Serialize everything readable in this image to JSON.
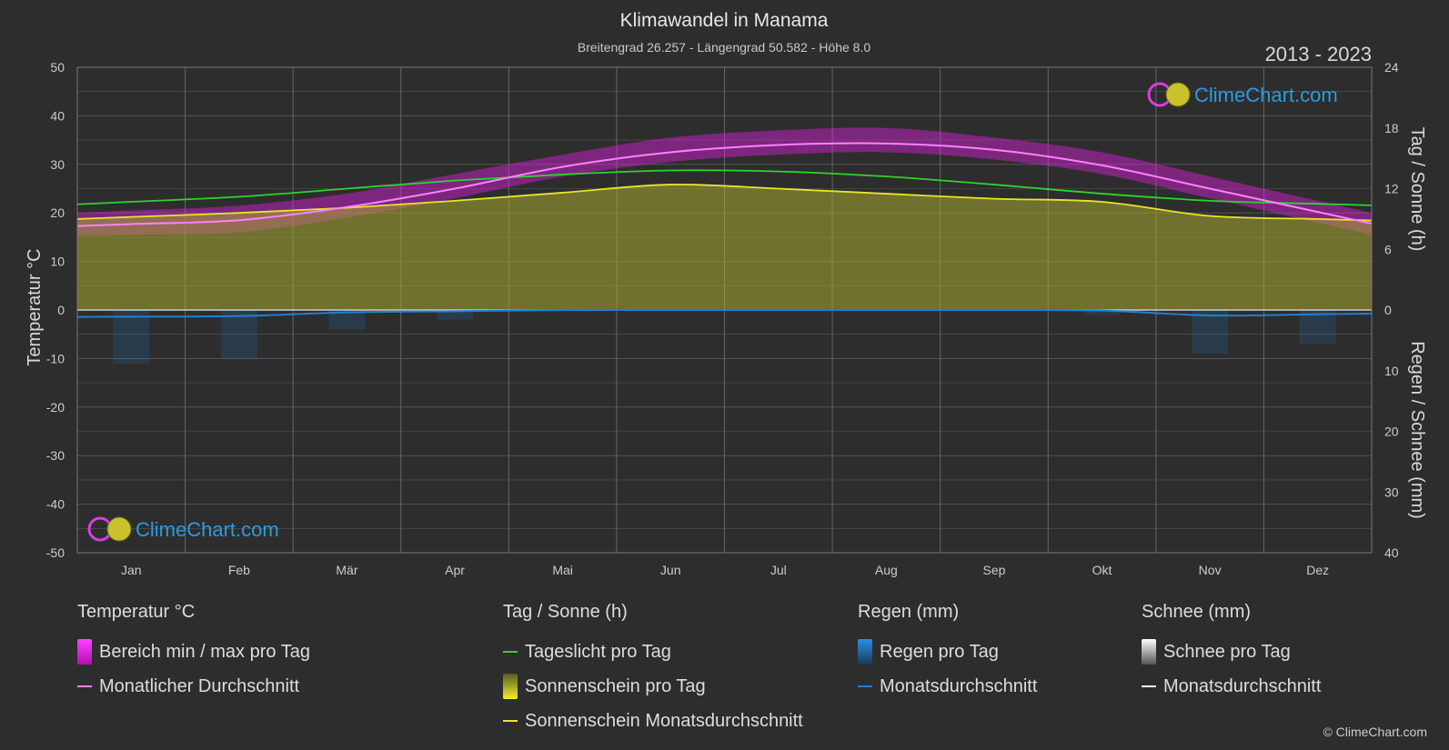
{
  "header": {
    "title": "Klimawandel in Manama",
    "subtitle": "Breitengrad 26.257 - Längengrad 50.582 - Höhe 8.0",
    "period": "2013 - 2023"
  },
  "logo_text": "ClimeChart.com",
  "copyright": "© ClimeChart.com",
  "colors": {
    "background": "#2d2d2d",
    "temp_band": "#e020e0",
    "temp_avg": "#ff80ff",
    "daylight": "#2ed32e",
    "sunshine_fill": "#a8a832",
    "sunshine_avg": "#e6e62a",
    "rain": "#1e7fd6",
    "snow": "#ffffff",
    "logo_blue": "#2c9ae0"
  },
  "chart_data": {
    "type": "line",
    "categories": [
      "Jan",
      "Feb",
      "Mär",
      "Apr",
      "Mai",
      "Jun",
      "Jul",
      "Aug",
      "Sep",
      "Okt",
      "Nov",
      "Dez"
    ],
    "axes": {
      "left": {
        "label": "Temperatur °C",
        "min": -50,
        "max": 50,
        "ticks": [
          50,
          40,
          30,
          20,
          10,
          0,
          -10,
          -20,
          -30,
          -40,
          -50
        ]
      },
      "right_top": {
        "label": "Tag / Sonne (h)",
        "min": 0,
        "max": 24,
        "ticks": [
          24,
          18,
          12,
          6,
          0
        ]
      },
      "right_bottom": {
        "label": "Regen / Schnee (mm)",
        "min": 0,
        "max": 40,
        "ticks": [
          0,
          10,
          20,
          30,
          40
        ]
      }
    },
    "grid": true,
    "series": [
      {
        "name": "Monatlicher Durchschnitt",
        "kind": "temp_avg",
        "values": [
          17.7,
          18.5,
          21.2,
          25.0,
          29.5,
          32.5,
          34.0,
          34.3,
          33.0,
          29.8,
          25.0,
          20.2
        ]
      },
      {
        "name": "Bereich min / max pro Tag",
        "kind": "temp_range",
        "min": [
          15.5,
          16.0,
          19.0,
          23.0,
          27.5,
          30.5,
          32.0,
          32.5,
          31.0,
          28.0,
          23.0,
          18.0
        ],
        "max": [
          20.5,
          21.5,
          24.0,
          28.0,
          32.0,
          35.5,
          37.0,
          37.5,
          35.5,
          32.5,
          27.5,
          22.5
        ]
      },
      {
        "name": "Tageslicht pro Tag",
        "kind": "daylight",
        "values": [
          10.7,
          11.2,
          12.0,
          12.8,
          13.4,
          13.8,
          13.7,
          13.2,
          12.4,
          11.5,
          10.8,
          10.5
        ]
      },
      {
        "name": "Sonnenschein Monatsdurchschnitt",
        "kind": "sunshine",
        "values": [
          9.2,
          9.6,
          10.1,
          10.8,
          11.6,
          12.4,
          12.0,
          11.5,
          11.0,
          10.7,
          9.3,
          9.0
        ]
      },
      {
        "name": "Monatsdurchschnitt",
        "kind": "rain",
        "values": [
          1.1,
          1.0,
          0.4,
          0.2,
          0.0,
          0.0,
          0.0,
          0.0,
          0.0,
          0.1,
          0.9,
          0.7
        ]
      },
      {
        "name": "Monatsdurchschnitt",
        "kind": "snow",
        "values": [
          0,
          0,
          0,
          0,
          0,
          0,
          0,
          0,
          0,
          0,
          0,
          0
        ]
      }
    ]
  },
  "legend": {
    "temperature": {
      "heading": "Temperatur °C",
      "items": [
        "Bereich min / max pro Tag",
        "Monatlicher Durchschnitt"
      ]
    },
    "sun": {
      "heading": "Tag / Sonne (h)",
      "items": [
        "Tageslicht pro Tag",
        "Sonnenschein pro Tag",
        "Sonnenschein Monatsdurchschnitt"
      ]
    },
    "rain": {
      "heading": "Regen (mm)",
      "items": [
        "Regen pro Tag",
        "Monatsdurchschnitt"
      ]
    },
    "snow": {
      "heading": "Schnee (mm)",
      "items": [
        "Schnee pro Tag",
        "Monatsdurchschnitt"
      ]
    }
  }
}
